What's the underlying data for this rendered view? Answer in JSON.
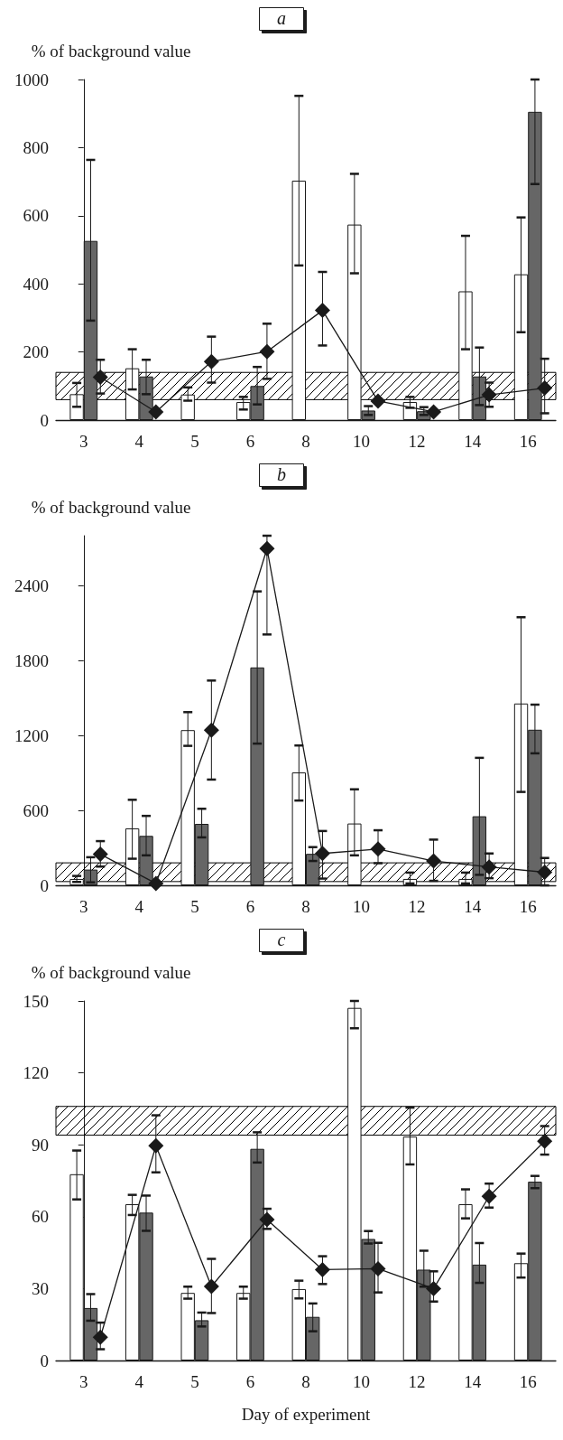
{
  "chart_data": [
    {
      "type": "bar",
      "title": "a",
      "ylabel": "% of background value",
      "categories": [
        "3",
        "4",
        "5",
        "6",
        "8",
        "10",
        "12",
        "14",
        "16"
      ],
      "ylim": [
        0,
        1000
      ],
      "yticks": [
        0,
        200,
        400,
        600,
        800,
        1000
      ],
      "grid": false,
      "marker": "diamond",
      "bands": [
        {
          "axis": "y",
          "from": 60,
          "to": 140,
          "color": "#000000"
        }
      ],
      "series": [
        {
          "color": "#ffffff",
          "values": [
            76,
            152,
            75,
            53,
            703,
            574,
            53,
            378,
            428
          ],
          "errors": [
            [
              39,
              109
            ],
            [
              90,
              208
            ],
            [
              57,
              96
            ],
            [
              31,
              68
            ],
            [
              454,
              952
            ],
            [
              431,
              723
            ],
            [
              36,
              68
            ],
            [
              208,
              541
            ],
            [
              258,
              595
            ]
          ]
        },
        {
          "color": "#666666",
          "values": [
            526,
            128,
            null,
            100,
            null,
            28,
            26,
            128,
            905
          ],
          "errors": [
            [
              292,
              764
            ],
            [
              76,
              177
            ],
            null,
            [
              46,
              156
            ],
            null,
            [
              15,
              41
            ],
            [
              15,
              38
            ],
            [
              44,
              213
            ],
            [
              693,
              1000
            ]
          ]
        },
        {
          "type": "line",
          "color": "#1a1a1a",
          "values": [
            126,
            24,
            172,
            201,
            322,
            56,
            24,
            74,
            94
          ],
          "errors": [
            [
              78,
              177
            ],
            null,
            [
              110,
              245
            ],
            [
              121,
              283
            ],
            [
              219,
              435
            ],
            null,
            null,
            [
              39,
              110
            ],
            [
              20,
              180
            ]
          ]
        }
      ]
    },
    {
      "type": "bar",
      "title": "b",
      "ylabel": "% of background value",
      "categories": [
        "3",
        "4",
        "5",
        "6",
        "8",
        "10",
        "12",
        "14",
        "16"
      ],
      "ylim": [
        0,
        2800
      ],
      "yticks": [
        0,
        600,
        1200,
        1800,
        2400
      ],
      "grid": false,
      "marker": "diamond",
      "bands": [
        {
          "axis": "y",
          "from": 30,
          "to": 180,
          "color": "#000000"
        }
      ],
      "series": [
        {
          "color": "#ffffff",
          "values": [
            51,
            456,
            1243,
            null,
            904,
            495,
            51,
            51,
            1456
          ],
          "errors": [
            [
              27,
              75
            ],
            [
              213,
              685
            ],
            [
              1117,
              1387
            ],
            null,
            [
              679,
              1120
            ],
            [
              240,
              769
            ],
            [
              15,
              102
            ],
            [
              15,
              102
            ],
            [
              748,
              2147
            ]
          ]
        },
        {
          "color": "#666666",
          "values": [
            126,
            396,
            492,
            1745,
            252,
            null,
            null,
            553,
            1246
          ],
          "errors": [
            [
              24,
              225
            ],
            [
              240,
              556
            ],
            [
              384,
              613
            ],
            [
              1135,
              2354
            ],
            [
              195,
              306
            ],
            null,
            null,
            [
              84,
              1021
            ],
            [
              1057,
              1447
            ]
          ]
        },
        {
          "type": "line",
          "color": "#1a1a1a",
          "values": [
            249,
            15,
            1243,
            2697,
            255,
            291,
            195,
            147,
            105
          ],
          "errors": [
            [
              150,
              354
            ],
            null,
            [
              847,
              1640
            ],
            [
              2009,
              2800
            ],
            [
              54,
              435
            ],
            [
              177,
              441
            ],
            [
              36,
              366
            ],
            [
              57,
              255
            ],
            [
              0,
              219
            ]
          ]
        }
      ]
    },
    {
      "type": "bar",
      "title": "c",
      "ylabel": "% of background value",
      "xlabel": "Day of experiment",
      "categories": [
        "3",
        "4",
        "5",
        "6",
        "8",
        "10",
        "12",
        "14",
        "16"
      ],
      "ylim": [
        0,
        150
      ],
      "yticks": [
        0,
        30,
        60,
        90,
        120,
        150
      ],
      "grid": false,
      "marker": "diamond",
      "bands": [
        {
          "axis": "y",
          "from": 94,
          "to": 106,
          "color": "#000000"
        }
      ],
      "series": [
        {
          "color": "#ffffff",
          "values": [
            77.7,
            65.2,
            28.2,
            28.2,
            29.8,
            147.1,
            93.4,
            65.2,
            40.6
          ],
          "errors": [
            [
              67.2,
              87.6
            ],
            [
              60.7,
              69.1
            ],
            [
              25.8,
              30.8
            ],
            [
              25.8,
              30.8
            ],
            [
              25.9,
              33.3
            ],
            [
              138.6,
              150
            ],
            [
              81.8,
              105.5
            ],
            [
              59.3,
              71.4
            ],
            [
              34.6,
              44.6
            ]
          ]
        },
        {
          "color": "#666666",
          "values": [
            21.9,
            61.7,
            16.8,
            88.3,
            18.2,
            50.7,
            37.9,
            40,
            74.6
          ],
          "errors": [
            [
              16.6,
              27.7
            ],
            [
              54.1,
              68.8
            ],
            [
              14.2,
              20
            ],
            [
              82.6,
              95.2
            ],
            [
              12.2,
              23.8
            ],
            [
              48.8,
              54
            ],
            [
              30.8,
              45.8
            ],
            [
              32.4,
              49
            ],
            [
              71.9,
              77
            ]
          ]
        },
        {
          "type": "line",
          "color": "#1a1a1a",
          "values": [
            9.7,
            89.6,
            30.9,
            58.8,
            37.9,
            38.3,
            30,
            68.5,
            91.5
          ],
          "errors": [
            [
              4.7,
              15.8
            ],
            [
              78.5,
              102.3
            ],
            [
              19.8,
              42.4
            ],
            [
              54.9,
              63.3
            ],
            [
              31.9,
              43.5
            ],
            [
              28.4,
              49.1
            ],
            [
              24.6,
              37.2
            ],
            [
              63.8,
              73.8
            ],
            [
              85.9,
              97.8
            ]
          ]
        }
      ]
    }
  ]
}
